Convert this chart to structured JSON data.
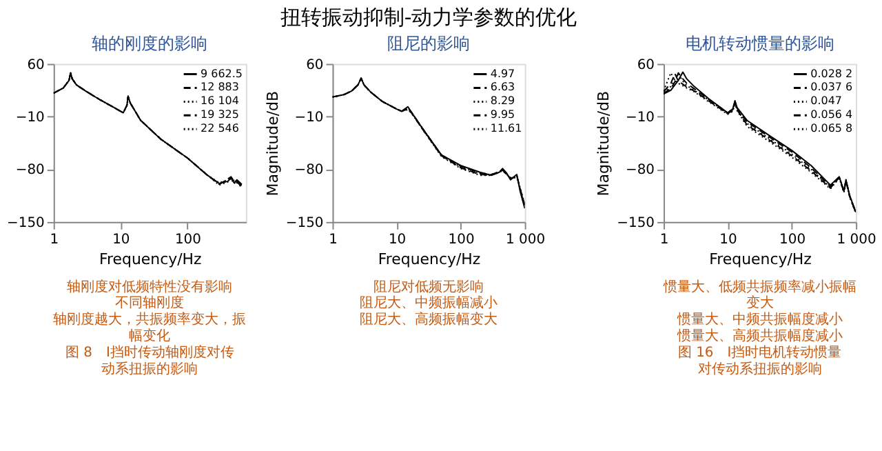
{
  "chart_data": [
    {
      "type": "line",
      "subtitle": "轴的刚度的影响",
      "xlabel": "Frequency/Hz",
      "log": "x",
      "legend": "top right",
      "xlim": [
        1,
        750
      ],
      "xticks": [
        1,
        10,
        100
      ],
      "ylim": [
        -150,
        60
      ],
      "yticks": [
        -150,
        -80,
        -10,
        60
      ],
      "x": [
        1,
        1.4,
        1.7,
        1.8,
        1.9,
        2.2,
        3,
        5,
        8,
        11,
        12.5,
        13,
        14,
        20,
        40,
        100,
        200,
        300,
        400,
        450,
        500,
        550,
        650
      ],
      "series": [
        {
          "name": "9 662.5",
          "color": "#000000",
          "line_style": "solid",
          "values": [
            21,
            28,
            38,
            48,
            40,
            32,
            24,
            12,
            2,
            -5,
            5,
            17,
            8,
            -15,
            -40,
            -65,
            -88,
            -99,
            -96,
            -92,
            -98,
            -94,
            -100
          ]
        },
        {
          "name": "12 883",
          "color": "#000000",
          "line_style": "dashed",
          "values": [
            21,
            28,
            38,
            48,
            40,
            32,
            24,
            12,
            2,
            -5,
            5,
            17,
            8,
            -15,
            -40,
            -65,
            -88,
            -99,
            -95,
            -91,
            -97,
            -95,
            -101
          ]
        },
        {
          "name": "16 104",
          "color": "#000000",
          "line_style": "dotted",
          "values": [
            21,
            28,
            38,
            48,
            40,
            32,
            24,
            12,
            2,
            -5,
            5,
            17,
            8,
            -15,
            -40,
            -65,
            -88,
            -98,
            -94,
            -93,
            -99,
            -96,
            -102
          ]
        },
        {
          "name": "19 325",
          "color": "#000000",
          "line_style": "dashed",
          "values": [
            21,
            28,
            38,
            48,
            40,
            32,
            24,
            12,
            2,
            -5,
            5,
            17,
            8,
            -15,
            -40,
            -65,
            -88,
            -100,
            -93,
            -90,
            -96,
            -97,
            -103
          ]
        },
        {
          "name": "22 546",
          "color": "#000000",
          "line_style": "dotted",
          "values": [
            21,
            28,
            38,
            48,
            40,
            32,
            24,
            12,
            2,
            -5,
            5,
            17,
            8,
            -15,
            -40,
            -65,
            -88,
            -101,
            -97,
            -92,
            -95,
            -98,
            -104
          ]
        }
      ],
      "annotations": [
        "轴刚度对低频特性没有影响",
        "不同轴刚度",
        "轴刚度越大，共振频率变大，振幅变化",
        "图 8　Ⅰ挡时传动轴刚度对传动系扭振的影响"
      ]
    },
    {
      "type": "line",
      "title": "扭转振动抑制-动力学参数的优化",
      "subtitle": "阻尼的影响",
      "xlabel": "Frequency/Hz",
      "ylabel": "Magnitude/dB",
      "log": "x",
      "legend": "top right",
      "xlim": [
        1,
        1000
      ],
      "xticks": [
        1,
        10,
        100,
        {
          "value": 1000,
          "label": "1 000"
        }
      ],
      "ylim": [
        -150,
        60
      ],
      "yticks": [
        -150,
        -80,
        -10,
        60
      ],
      "x": [
        1,
        1.5,
        2,
        2.5,
        2.8,
        3.1,
        4,
        6,
        10,
        12,
        15,
        17,
        25,
        50,
        100,
        200,
        300,
        400,
        450,
        520,
        600,
        700,
        750,
        850,
        1000
      ],
      "series": [
        {
          "name": "4.97",
          "color": "#000000",
          "line_style": "solid",
          "values": [
            16,
            19,
            24,
            32,
            41,
            32,
            22,
            10,
            0,
            -3,
            3,
            -4,
            -25,
            -61,
            -75,
            -84,
            -88,
            -84,
            -79,
            -85,
            -94,
            -89,
            -87,
            -110,
            -132
          ]
        },
        {
          "name": "6.63",
          "color": "#000000",
          "line_style": "dashed",
          "values": [
            16,
            19,
            24,
            32,
            41,
            32,
            22,
            10,
            0,
            -3,
            2,
            -4,
            -25,
            -61,
            -76,
            -85,
            -87,
            -83,
            -80,
            -86,
            -93,
            -90,
            -88,
            -108,
            -130
          ]
        },
        {
          "name": "8.29",
          "color": "#000000",
          "line_style": "dotted",
          "values": [
            16,
            19,
            24,
            32,
            41,
            32,
            22,
            10,
            0,
            -3,
            1,
            -4,
            -25,
            -62,
            -77,
            -86,
            -87,
            -83,
            -81,
            -86,
            -92,
            -90,
            -89,
            -107,
            -129
          ]
        },
        {
          "name": "9.95",
          "color": "#000000",
          "line_style": "dashed",
          "values": [
            16,
            19,
            24,
            32,
            41,
            32,
            22,
            10,
            0,
            -3,
            0,
            -5,
            -26,
            -62,
            -78,
            -87,
            -88,
            -84,
            -81,
            -87,
            -92,
            -91,
            -89,
            -106,
            -128
          ]
        },
        {
          "name": "11.61",
          "color": "#000000",
          "line_style": "dotted",
          "values": [
            16,
            19,
            24,
            32,
            41,
            32,
            22,
            10,
            0,
            -3,
            -1,
            -5,
            -26,
            -63,
            -79,
            -88,
            -88,
            -84,
            -82,
            -87,
            -91,
            -91,
            -90,
            -105,
            -127
          ]
        }
      ],
      "annotations": [
        "阻尼对低频无影响",
        "阻尼大、中频振幅减小",
        "阻尼大、高频振幅变大"
      ]
    },
    {
      "type": "line",
      "subtitle": "电机转动惯量的影响",
      "xlabel": "Frequency/Hz",
      "ylabel": "Magnitude/dB",
      "log": "x",
      "legend": "top right",
      "xlim": [
        1,
        1000
      ],
      "xticks": [
        1,
        10,
        100,
        {
          "value": 1000,
          "label": "1 000"
        }
      ],
      "ylim": [
        -150,
        60
      ],
      "yticks": [
        -150,
        -80,
        -10,
        60
      ],
      "x": [
        1,
        1.3,
        1.5,
        1.7,
        2,
        2.3,
        3,
        5,
        10,
        12,
        13,
        14,
        20,
        50,
        100,
        200,
        400,
        550,
        650,
        700,
        800,
        1000
      ],
      "series": [
        {
          "name": "0.028 2",
          "color": "#000000",
          "line_style": "solid",
          "values": [
            20,
            25,
            32,
            38,
            49,
            40,
            30,
            14,
            -5,
            0,
            11,
            2,
            -15,
            -38,
            -55,
            -75,
            -101,
            -90,
            -109,
            -94,
            -115,
            -137
          ]
        },
        {
          "name": "0.037 6",
          "color": "#000000",
          "line_style": "dashed",
          "values": [
            21,
            27,
            36,
            48,
            40,
            34,
            27,
            13,
            -5,
            0,
            10,
            1,
            -17,
            -40,
            -57,
            -78,
            -103,
            -91,
            -110,
            -95,
            -116,
            -138
          ]
        },
        {
          "name": "0.047",
          "color": "#000000",
          "line_style": "dotted",
          "values": [
            22,
            30,
            40,
            47,
            37,
            31,
            25,
            12,
            -6,
            -1,
            9,
            0,
            -19,
            -42,
            -60,
            -80,
            -104,
            -90,
            -109,
            -94,
            -115,
            -137
          ]
        },
        {
          "name": "0.056 4",
          "color": "#000000",
          "line_style": "dashed",
          "values": [
            23,
            34,
            47,
            37,
            33,
            29,
            24,
            11,
            -6,
            -2,
            8,
            -1,
            -21,
            -44,
            -62,
            -82,
            -105,
            -91,
            -110,
            -95,
            -116,
            -138
          ]
        },
        {
          "name": "0.065 8",
          "color": "#000000",
          "line_style": "dotted",
          "values": [
            24,
            48,
            38,
            34,
            31,
            28,
            23,
            10,
            -7,
            -3,
            7,
            -2,
            -23,
            -46,
            -64,
            -84,
            -106,
            -92,
            -111,
            -96,
            -117,
            -139
          ]
        }
      ],
      "annotations": [
        "惯量大、低频共振频率减小振幅变大",
        "惯量大、中频共振幅度减小",
        "惯量大、高频共振幅度减小",
        "图 16　Ⅰ挡时电机转动惯量对传动系扭振的影响"
      ]
    }
  ]
}
